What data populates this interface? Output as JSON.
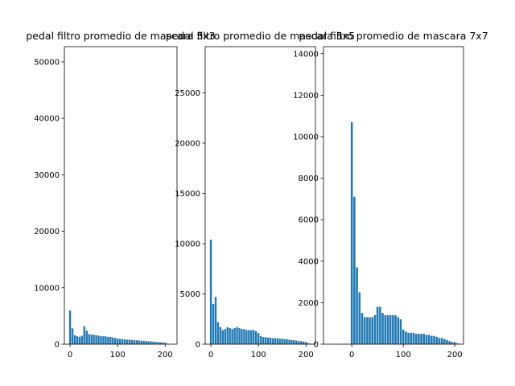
{
  "chart_data": [
    {
      "type": "bar",
      "title": "pedal filtro promedio de mascara 3x3",
      "color": "#1f77b4",
      "x": [
        0,
        5,
        10,
        15,
        20,
        25,
        30,
        35,
        40,
        45,
        50,
        55,
        60,
        65,
        70,
        75,
        80,
        85,
        90,
        95,
        100,
        105,
        110,
        115,
        120,
        125,
        130,
        135,
        140,
        145,
        150,
        155,
        160,
        165,
        170,
        175,
        180,
        185,
        190,
        195,
        200,
        205,
        210
      ],
      "values": [
        6000,
        2800,
        1600,
        1400,
        1300,
        1500,
        3200,
        2400,
        1800,
        1700,
        1700,
        1600,
        1500,
        1400,
        1400,
        1400,
        1300,
        1300,
        1200,
        1100,
        1000,
        950,
        900,
        850,
        800,
        800,
        750,
        700,
        700,
        650,
        600,
        600,
        550,
        500,
        500,
        450,
        400,
        380,
        350,
        300,
        250,
        100,
        50
      ],
      "xlim": [
        -12,
        225
      ],
      "xticks": [
        0,
        100,
        200
      ],
      "ylim": [
        0,
        52700
      ],
      "yticks": [
        0,
        10000,
        20000,
        30000,
        40000,
        50000
      ]
    },
    {
      "type": "bar",
      "title": "pedal filtro promedio de mascara 5x5",
      "color": "#1f77b4",
      "x": [
        0,
        5,
        10,
        15,
        20,
        25,
        30,
        35,
        40,
        45,
        50,
        55,
        60,
        65,
        70,
        75,
        80,
        85,
        90,
        95,
        100,
        105,
        110,
        115,
        120,
        125,
        130,
        135,
        140,
        145,
        150,
        155,
        160,
        165,
        170,
        175,
        180,
        185,
        190,
        195,
        200,
        205,
        210
      ],
      "values": [
        10400,
        4000,
        4700,
        2200,
        1700,
        1400,
        1500,
        1700,
        1600,
        1500,
        1600,
        1700,
        1600,
        1500,
        1500,
        1400,
        1400,
        1400,
        1400,
        1300,
        1100,
        800,
        700,
        700,
        650,
        650,
        600,
        600,
        600,
        550,
        550,
        500,
        500,
        450,
        400,
        400,
        350,
        300,
        300,
        250,
        200,
        100,
        50
      ],
      "xlim": [
        -12,
        220
      ],
      "xticks": [
        0,
        100,
        200
      ],
      "ylim": [
        0,
        29600
      ],
      "yticks": [
        0,
        5000,
        10000,
        15000,
        20000,
        25000
      ]
    },
    {
      "type": "bar",
      "title": "pedal filtro promedio de mascara 7x7",
      "color": "#1f77b4",
      "x": [
        0,
        5,
        10,
        15,
        20,
        25,
        30,
        35,
        40,
        45,
        50,
        55,
        60,
        65,
        70,
        75,
        80,
        85,
        90,
        95,
        100,
        105,
        110,
        115,
        120,
        125,
        130,
        135,
        140,
        145,
        150,
        155,
        160,
        165,
        170,
        175,
        180,
        185,
        190,
        195,
        200,
        205,
        210
      ],
      "values": [
        10700,
        7100,
        3700,
        2500,
        1500,
        1300,
        1300,
        1300,
        1300,
        1400,
        1800,
        1800,
        1500,
        1400,
        1400,
        1400,
        1400,
        1400,
        1300,
        1200,
        700,
        600,
        550,
        550,
        550,
        500,
        500,
        500,
        500,
        450,
        450,
        400,
        400,
        350,
        300,
        300,
        250,
        200,
        150,
        100,
        100,
        50,
        20
      ],
      "xlim": [
        -55,
        217
      ],
      "xticks": [
        0,
        100,
        200
      ],
      "ylim": [
        0,
        14340
      ],
      "yticks": [
        0,
        2000,
        4000,
        6000,
        8000,
        10000,
        12000,
        14000
      ]
    }
  ]
}
